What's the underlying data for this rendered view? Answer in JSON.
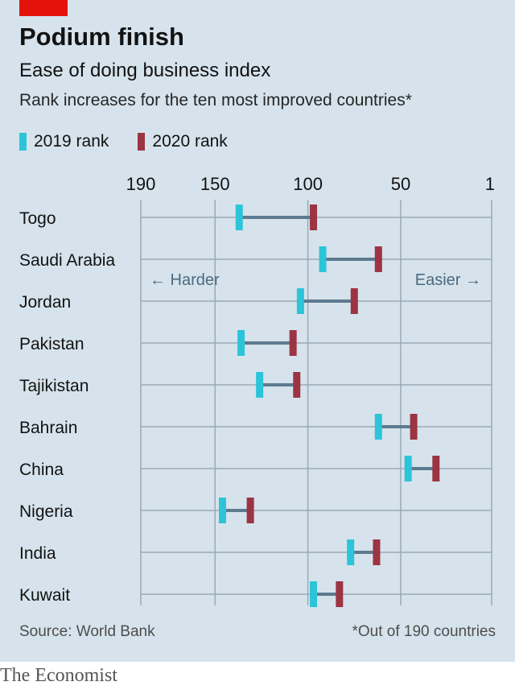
{
  "title": "Podium finish",
  "subtitle": "Ease of doing business index",
  "description": "Rank increases for the ten most improved countries*",
  "legend": {
    "rank_2019": "2019 rank",
    "rank_2020": "2020 rank"
  },
  "colors": {
    "rank_2019": "#2bc4d9",
    "rank_2020": "#9c3443",
    "connector": "#5d7a8f",
    "grid": "#9aaab5",
    "background": "#d6e3ec",
    "brand_tag": "#e3120b"
  },
  "direction_labels": {
    "left": "← Harder",
    "right": "Easier →"
  },
  "source": "Source: World Bank",
  "footnote": "*Out of 190 countries",
  "brand": "The Economist",
  "chart_data": {
    "type": "dumbbell",
    "x_axis": {
      "ticks": [
        190,
        150,
        100,
        50,
        1
      ],
      "domain": [
        190,
        1
      ],
      "reversed": true,
      "grid": true
    },
    "categories": [
      "Togo",
      "Saudi Arabia",
      "Jordan",
      "Pakistan",
      "Tajikistan",
      "Bahrain",
      "China",
      "Nigeria",
      "India",
      "Kuwait"
    ],
    "series": [
      {
        "name": "2019 rank",
        "values": [
          137,
          92,
          104,
          136,
          126,
          62,
          46,
          146,
          77,
          97
        ]
      },
      {
        "name": "2020 rank",
        "values": [
          97,
          62,
          75,
          108,
          106,
          43,
          31,
          131,
          63,
          83
        ]
      }
    ]
  }
}
